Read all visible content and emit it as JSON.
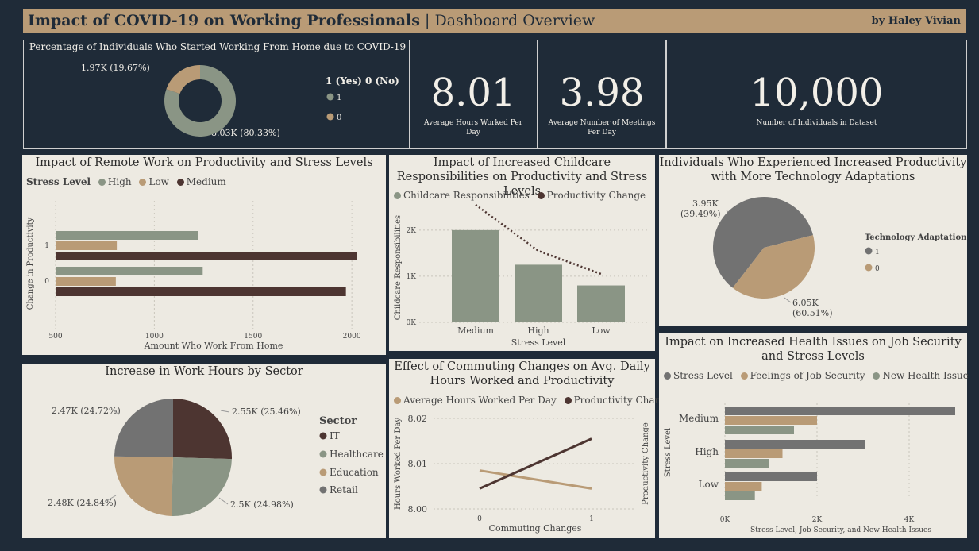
{
  "header": {
    "title_bold": "Impact of COVID-19 on Working Professionals",
    "title_sep": "|",
    "title_rest": "Dashboard Overview",
    "author": "by Haley Vivian"
  },
  "colors": {
    "background": "#1f2b38",
    "banner": "#b99b76",
    "sage": "#8a9585",
    "tan": "#b99b76",
    "brown": "#4d3531",
    "gray": "#727272",
    "panel": "#edeae2"
  },
  "kpis": [
    {
      "value": "8.01",
      "label": "Average Hours Worked Per Day"
    },
    {
      "value": "3.98",
      "label": "Average Number of Meetings Per Day"
    },
    {
      "value": "10,000",
      "label": "Number of Individuals in Dataset"
    }
  ],
  "chart_data": [
    {
      "id": "wfh_donut",
      "type": "pie",
      "donut": true,
      "title": "Percentage of Individuals Who Started Working From Home due to COVID-19",
      "legend_title": "1 (Yes) 0 (No)",
      "slices": [
        {
          "label": "1",
          "value": 8030,
          "display": "8.03K (80.33%)",
          "color": "#8a9585"
        },
        {
          "label": "0",
          "value": 1970,
          "display": "1.97K (19.67%)",
          "color": "#b99b76"
        }
      ]
    },
    {
      "id": "remote_productivity",
      "type": "bar",
      "orientation": "horizontal",
      "title": "Impact of Remote Work on Productivity and Stress Levels",
      "legend_title": "Stress Level",
      "categories": [
        "1",
        "0"
      ],
      "series": [
        {
          "name": "High",
          "color": "#8a9585",
          "values": [
            1220,
            1245
          ]
        },
        {
          "name": "Low",
          "color": "#b99b76",
          "values": [
            810,
            805
          ]
        },
        {
          "name": "Medium",
          "color": "#4d3531",
          "values": [
            2025,
            1970
          ]
        }
      ],
      "xlabel": "Amount Who Work From Home",
      "ylabel": "Change in Productivity",
      "xlim": [
        500,
        2100
      ],
      "xticks": [
        "500",
        "1000",
        "1500",
        "2000"
      ]
    },
    {
      "id": "childcare",
      "type": "bar",
      "title": "Impact of Increased Childcare Responsibilities on Productivity and Stress Levels",
      "categories": [
        "Medium",
        "High",
        "Low"
      ],
      "series": [
        {
          "name": "Childcare Responsibilities",
          "color": "#8a9585",
          "kind": "bar",
          "values": [
            2000,
            1250,
            800
          ]
        },
        {
          "name": "Productivity Change",
          "color": "#4d3531",
          "kind": "dotted-line",
          "values": [
            2.55,
            1.55,
            1.05
          ]
        }
      ],
      "xlabel": "Stress Level",
      "ylabel": "Childcare Responsibilities",
      "ylim": [
        0,
        2600
      ],
      "yticks": [
        "0K",
        "1K",
        "2K"
      ]
    },
    {
      "id": "tech_adaptation",
      "type": "pie",
      "title": "Individuals Who Experienced Increased Productivity with More Technology Adaptations",
      "legend_title": "Technology Adaptation",
      "slices": [
        {
          "label": "1",
          "value": 6050,
          "display_value": "6.05K",
          "display_pct": "(60.51%)",
          "color": "#727272"
        },
        {
          "label": "0",
          "value": 3950,
          "display_value": "3.95K",
          "display_pct": "(39.49%)",
          "color": "#b99b76"
        }
      ]
    },
    {
      "id": "sector_hours",
      "type": "pie",
      "title": "Increase in Work Hours by Sector",
      "legend_title": "Sector",
      "slices": [
        {
          "label": "IT",
          "value": 2546,
          "display": "2.55K (25.46%)",
          "color": "#4d3531"
        },
        {
          "label": "Healthcare",
          "value": 2498,
          "display": "2.5K (24.98%)",
          "color": "#8a9585"
        },
        {
          "label": "Education",
          "value": 2484,
          "display": "2.48K (24.84%)",
          "color": "#b99b76"
        },
        {
          "label": "Retail",
          "value": 2472,
          "display": "2.47K (24.72%)",
          "color": "#727272"
        }
      ]
    },
    {
      "id": "commuting",
      "type": "line",
      "title": "Effect of Commuting Changes on Avg. Daily Hours Worked and Productivity",
      "x": [
        0,
        1
      ],
      "xticks": [
        "0",
        "1"
      ],
      "series": [
        {
          "name": "Average Hours Worked Per Day",
          "color": "#b99b76",
          "values": [
            8.0085,
            8.0045
          ]
        },
        {
          "name": "Productivity Change",
          "color": "#4d3531",
          "values": [
            8.0045,
            8.0155
          ]
        }
      ],
      "xlabel": "Commuting Changes",
      "ylabel": "Hours Worked Per Day",
      "y2label": "Productivity Change",
      "ylim": [
        8.0,
        8.02
      ],
      "yticks": [
        "8.00",
        "8.01",
        "8.02"
      ]
    },
    {
      "id": "health_issues",
      "type": "bar",
      "orientation": "horizontal",
      "title": "Impact on Increased Health Issues on Job Security and Stress Levels",
      "categories": [
        "Medium",
        "High",
        "Low"
      ],
      "series": [
        {
          "name": "Stress Level",
          "color": "#727272",
          "values": [
            5000,
            3050,
            2000
          ]
        },
        {
          "name": "Feelings of Job Security",
          "color": "#b99b76",
          "values": [
            2000,
            1250,
            800
          ]
        },
        {
          "name": "New Health Issue",
          "color": "#8a9585",
          "values": [
            1500,
            950,
            650
          ]
        }
      ],
      "xlabel": "Stress Level, Job Security, and New Health Issues",
      "ylabel": "Stress Level",
      "xlim": [
        0,
        5000
      ],
      "xticks": [
        "0K",
        "2K",
        "4K"
      ]
    }
  ]
}
